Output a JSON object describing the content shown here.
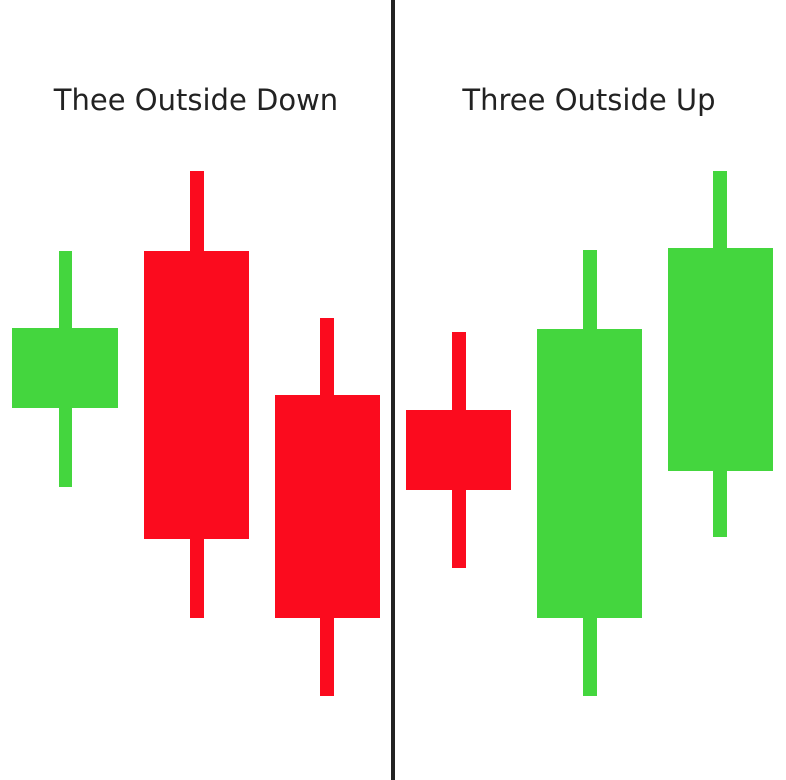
{
  "panels": [
    {
      "title": "Thee Outside Down",
      "candles": [
        {
          "direction": "bullish",
          "color": "green"
        },
        {
          "direction": "bearish",
          "color": "red"
        },
        {
          "direction": "bearish",
          "color": "red"
        }
      ]
    },
    {
      "title": "Three Outside Up",
      "candles": [
        {
          "direction": "bearish",
          "color": "red"
        },
        {
          "direction": "bullish",
          "color": "green"
        },
        {
          "direction": "bullish",
          "color": "green"
        }
      ]
    }
  ],
  "colors": {
    "green": "#44d63e",
    "red": "#fb0b1e",
    "divider": "#222222",
    "background": "#ffffff"
  }
}
